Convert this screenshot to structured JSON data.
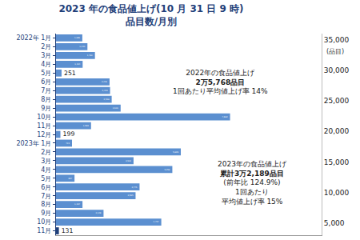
{
  "chart_data": {
    "type": "bar",
    "orientation": "horizontal",
    "title": "2023 年の食品値上げ(10 月 31 日 9 時)",
    "subtitle": "品目数/月別",
    "categories": [
      "2022年 1月",
      "2月",
      "3月",
      "4月",
      "5月",
      "6月",
      "7月",
      "8月",
      "9月",
      "10月",
      "11月",
      "12月",
      "2023年 1月",
      "2月",
      "3月",
      "4月",
      "5月",
      "6月",
      "7月",
      "8月",
      "9月",
      "10月",
      "11月"
    ],
    "values": [
      1189,
      1420,
      1760,
      1204,
      251,
      2419,
      2443,
      2516,
      2920,
      7864,
      1583,
      199,
      723,
      5639,
      3503,
      5256,
      837,
      3775,
      3595,
      1197,
      2148,
      4757,
      131
    ],
    "value_labels": [
      "1,189",
      "1,420",
      "1,760",
      "1,204",
      "251",
      "2,419",
      "2,443",
      "2,516",
      "2,920",
      "7,864",
      "1,583",
      "199",
      "723",
      "5,639",
      "3,503",
      "5,256",
      "837",
      "3,775",
      "3,595",
      "1,197",
      "2,148",
      "4,757",
      "131"
    ],
    "colors": [
      "#5b8fd0",
      "#5b8fd0",
      "#5b8fd0",
      "#5b8fd0",
      "#5b8fd0",
      "#5b8fd0",
      "#5b8fd0",
      "#5b8fd0",
      "#5b8fd0",
      "#5b8fd0",
      "#5b8fd0",
      "#5b8fd0",
      "#5b8fd0",
      "#5b8fd0",
      "#5b8fd0",
      "#5b8fd0",
      "#5b8fd0",
      "#5b8fd0",
      "#5b8fd0",
      "#5b8fd0",
      "#5b8fd0",
      "#5b8fd0",
      "#1f3f7a"
    ],
    "data_labels": true,
    "xlim": [
      0,
      12000
    ],
    "tick_labels": "y",
    "grid": false,
    "y2lim": [
      3000,
      36000
    ],
    "y2ticks": [
      {
        "value": 5000,
        "label": "5,000"
      },
      {
        "value": 10000,
        "label": "10,000"
      },
      {
        "value": 15000,
        "label": "15,000"
      },
      {
        "value": 20000,
        "label": "20,000"
      },
      {
        "value": 25000,
        "label": "25,000"
      },
      {
        "value": 30000,
        "label": "30,000"
      },
      {
        "value": 35000,
        "label": "35,000"
      }
    ],
    "y2label": "(品目)",
    "annotations": [
      {
        "lines": [
          "2022年の食品値上げ",
          "2万5,768品目",
          "1回あたり平均値上げ率 14%"
        ]
      },
      {
        "lines": [
          "2023年の食品値上げ",
          "累計3万2,189品目",
          "(前年比 124.9%)",
          "1回あたり",
          "平均値上げ率 15%"
        ]
      }
    ]
  }
}
